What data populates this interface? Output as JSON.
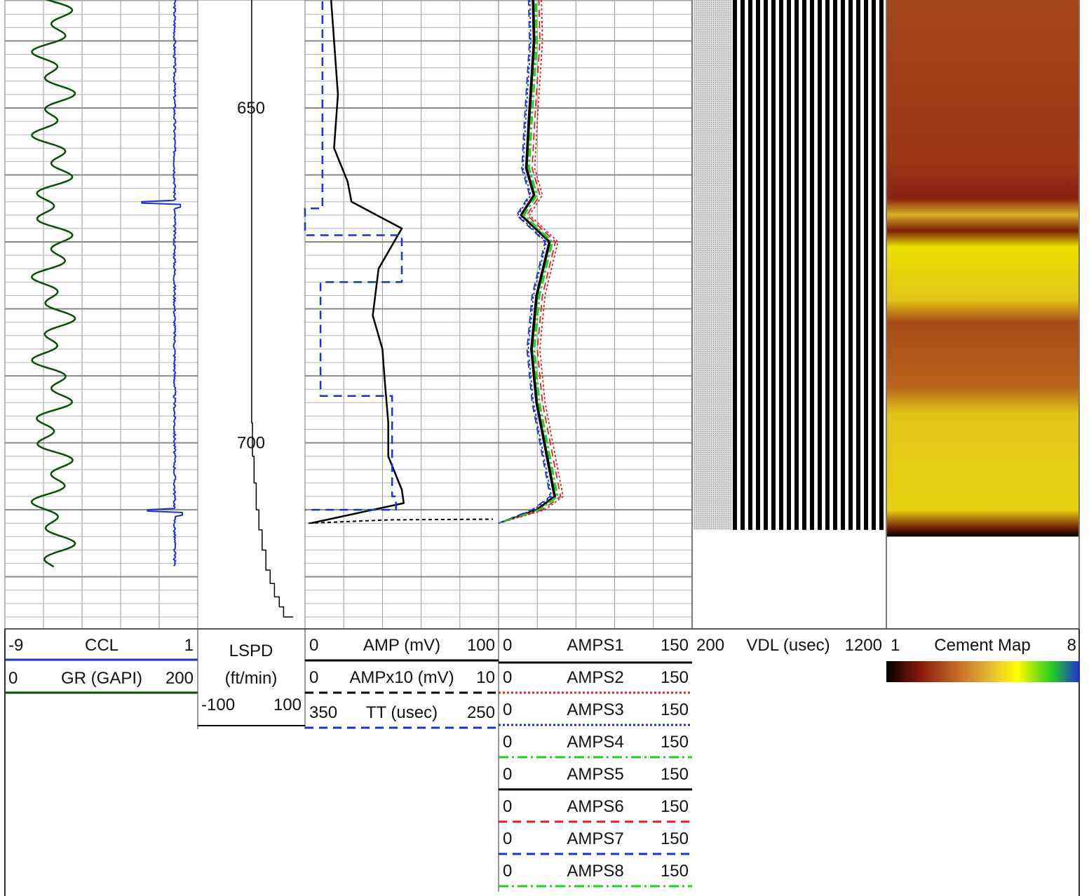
{
  "chart_data": {
    "type": "line",
    "title": "",
    "depth_axis": {
      "labels": [
        "650",
        "700"
      ],
      "range": [
        632,
        726
      ],
      "major_step": 10,
      "minor_step": 2
    },
    "tracks": [
      {
        "id": "track1",
        "curves": [
          {
            "name": "CCL",
            "min": "-9",
            "max": "1",
            "color": "#1f2fd6",
            "style": "solid"
          },
          {
            "name": "GR (GAPI)",
            "min": "0",
            "max": "200",
            "color": "#0b4d0b",
            "style": "solid"
          }
        ]
      },
      {
        "id": "depth",
        "curves": [
          {
            "name": "LSPD",
            "unit": "(ft/min)",
            "min": "-100",
            "max": "100",
            "color": "#000000",
            "style": "solid"
          }
        ]
      },
      {
        "id": "track2",
        "curves": [
          {
            "name": "AMP (mV)",
            "min": "0",
            "max": "100",
            "color": "#000000",
            "style": "solid"
          },
          {
            "name": "AMPx10 (mV)",
            "min": "0",
            "max": "10",
            "color": "#000000",
            "style": "dashed"
          },
          {
            "name": "TT (usec)",
            "min": "350",
            "max": "250",
            "color": "#1f2fd6",
            "style": "dashed"
          }
        ]
      },
      {
        "id": "track3",
        "curves": [
          {
            "name": "AMPS1",
            "min": "0",
            "max": "150",
            "color": "#000000",
            "style": "solid"
          },
          {
            "name": "AMPS2",
            "min": "0",
            "max": "150",
            "color": "#e02020",
            "style": "dotted"
          },
          {
            "name": "AMPS3",
            "min": "0",
            "max": "150",
            "color": "#1f2fd6",
            "style": "dotted"
          },
          {
            "name": "AMPS4",
            "min": "0",
            "max": "150",
            "color": "#22cc22",
            "style": "dashdot"
          },
          {
            "name": "AMPS5",
            "min": "0",
            "max": "150",
            "color": "#000000",
            "style": "solid"
          },
          {
            "name": "AMPS6",
            "min": "0",
            "max": "150",
            "color": "#e02020",
            "style": "dashed"
          },
          {
            "name": "AMPS7",
            "min": "0",
            "max": "150",
            "color": "#1f2fd6",
            "style": "dashed"
          },
          {
            "name": "AMPS8",
            "min": "0",
            "max": "150",
            "color": "#22cc22",
            "style": "dashdot"
          }
        ]
      },
      {
        "id": "vdl",
        "curves": [
          {
            "name": "VDL (usec)",
            "min": "200",
            "max": "1200"
          }
        ]
      },
      {
        "id": "cement",
        "curves": [
          {
            "name": "Cement Map",
            "min": "1",
            "max": "8"
          }
        ],
        "colorscale": [
          "#000000",
          "#8b1a0a",
          "#c8702a",
          "#e8c030",
          "#ffff00",
          "#22cc22",
          "#1f2fd6"
        ]
      }
    ],
    "series": [
      {
        "name": "AMP (mV)",
        "depth": [
          632,
          640,
          648,
          656,
          661,
          664,
          668,
          674,
          681,
          686,
          690,
          697,
          702,
          707,
          709,
          712
        ],
        "values": [
          13,
          15,
          17,
          15,
          22,
          24,
          50,
          38,
          35,
          40,
          41,
          43,
          43,
          50,
          51,
          3
        ]
      },
      {
        "name": "TT (usec)",
        "depth": [
          632,
          662,
          665,
          669,
          676,
          686,
          693,
          708,
          710
        ],
        "values": [
          341,
          341,
          350,
          300,
          342,
          342,
          305,
          303,
          350
        ]
      },
      {
        "name": "AMPS1",
        "depth": [
          632,
          640,
          652,
          659,
          663,
          666,
          670,
          678,
          686,
          694,
          704,
          708,
          710,
          712
        ],
        "values": [
          27,
          28,
          24,
          22,
          28,
          18,
          40,
          30,
          26,
          30,
          40,
          44,
          30,
          0
        ]
      }
    ]
  }
}
